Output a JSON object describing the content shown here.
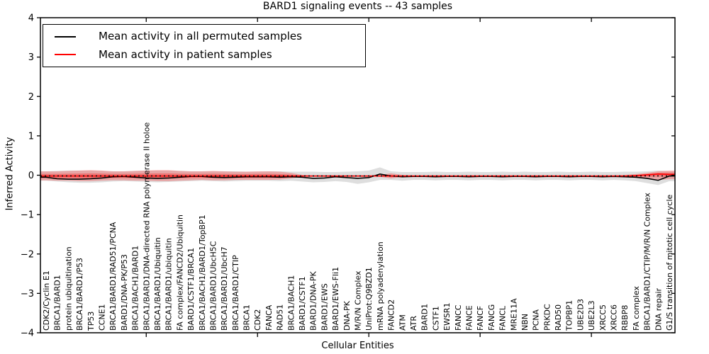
{
  "title": "BARD1 signaling events -- 43 samples",
  "axes": {
    "x_label": "Cellular Entities",
    "y_label": "Inferred Activity",
    "y_tick_labels": [
      "-4",
      "-3",
      "-2",
      "-1",
      "0",
      "1",
      "2",
      "3",
      "4"
    ],
    "y_ticks": [
      -4,
      -3,
      -2,
      -1,
      0,
      1,
      2,
      3,
      4
    ],
    "y_min": -4,
    "y_max": 4
  },
  "legend": {
    "items": [
      {
        "label": "Mean activity in all permuted samples",
        "color": "#000000"
      },
      {
        "label": "Mean activity in patient samples",
        "color": "#ff0000"
      }
    ]
  },
  "chart_data": {
    "type": "line",
    "title": "BARD1 signaling events -- 43 samples",
    "xlabel": "Cellular Entities",
    "ylabel": "Inferred Activity",
    "ylim": [
      -4,
      4
    ],
    "grid": false,
    "legend_position": "upper left",
    "categories": [
      "CDK2/Cyclin E1",
      "BRCA1/BARD1",
      "protein ubiquitination",
      "BRCA1/BARD1/P53",
      "TP53",
      "CCNE1",
      "BRCA1/BARD1/RAD51/PCNA",
      "BARD1/DNA-PK/P53",
      "BRCA1/BACH1/BARD1",
      "BRCA1/BARD1/DNA-directed RNA polymerase II holoe",
      "BRCA1/BARD1/Ubiquitin",
      "BRCA1/BARD1/ubiquitin",
      "FA complex/FANCD2/Ubiquitin",
      "BARD1/CSTF1/BRCA1",
      "BRCA1/BACH1/BARD1/TopBP1",
      "BRCA1/BARD1/UbcH5C",
      "BRCA1/BARD1/UbcH7",
      "BRCA1/BARD1/CTIP",
      "BRCA1",
      "CDK2",
      "FANCA",
      "RAD51",
      "BRCA1/BACH1",
      "BARD1/CSTF1",
      "BARD1/DNA-PK",
      "BARD1/EWS",
      "BARD1/EWS-Fli1",
      "DNA-PK",
      "M/R/N Complex",
      "UniProt:Q9BZD1",
      "mRNA polyadenylation",
      "FANCD2",
      "ATM",
      "ATR",
      "BARD1",
      "CSTF1",
      "EWSR1",
      "FANCC",
      "FANCE",
      "FANCF",
      "FANCG",
      "FANCL",
      "MRE11A",
      "NBN",
      "PCNA",
      "PRKDC",
      "RAD50",
      "TOPBP1",
      "UBE2D3",
      "UBE2L3",
      "XRCC5",
      "XRCC6",
      "RBBP8",
      "FA complex",
      "BRCA1/BARD1/CTIP/M/R/N Complex",
      "DNA repair",
      "G1/S transition of mitotic cell cycle"
    ],
    "series": [
      {
        "name": "Mean activity in all permuted samples",
        "color": "#000000",
        "band_color": "#000000",
        "band_alpha": 0.13,
        "values": [
          -0.05,
          -0.09,
          -0.1,
          -0.1,
          -0.09,
          -0.07,
          -0.04,
          -0.03,
          -0.05,
          -0.07,
          -0.08,
          -0.07,
          -0.05,
          -0.03,
          -0.03,
          -0.05,
          -0.06,
          -0.05,
          -0.04,
          -0.04,
          -0.04,
          -0.05,
          -0.04,
          -0.05,
          -0.08,
          -0.07,
          -0.04,
          -0.06,
          -0.08,
          -0.06,
          0.03,
          -0.02,
          -0.04,
          -0.03,
          -0.03,
          -0.04,
          -0.03,
          -0.03,
          -0.04,
          -0.03,
          -0.03,
          -0.04,
          -0.03,
          -0.03,
          -0.04,
          -0.03,
          -0.03,
          -0.04,
          -0.03,
          -0.03,
          -0.04,
          -0.03,
          -0.04,
          -0.05,
          -0.08,
          -0.13,
          -0.02
        ],
        "band_upper": [
          0.1,
          0.11,
          0.12,
          0.12,
          0.12,
          0.11,
          0.1,
          0.1,
          0.11,
          0.12,
          0.12,
          0.12,
          0.11,
          0.1,
          0.1,
          0.1,
          0.1,
          0.1,
          0.09,
          0.09,
          0.1,
          0.1,
          0.09,
          0.09,
          0.09,
          0.08,
          0.08,
          0.09,
          0.1,
          0.12,
          0.2,
          0.1,
          0.08,
          0.08,
          0.08,
          0.09,
          0.08,
          0.08,
          0.09,
          0.08,
          0.08,
          0.09,
          0.08,
          0.09,
          0.08,
          0.08,
          0.09,
          0.08,
          0.08,
          0.09,
          0.08,
          0.08,
          0.09,
          0.09,
          0.1,
          0.12,
          0.1
        ],
        "band_lower": [
          -0.14,
          -0.16,
          -0.18,
          -0.19,
          -0.19,
          -0.18,
          -0.16,
          -0.15,
          -0.16,
          -0.17,
          -0.18,
          -0.17,
          -0.16,
          -0.15,
          -0.14,
          -0.15,
          -0.16,
          -0.15,
          -0.14,
          -0.14,
          -0.14,
          -0.15,
          -0.14,
          -0.16,
          -0.18,
          -0.17,
          -0.15,
          -0.17,
          -0.22,
          -0.18,
          -0.12,
          -0.12,
          -0.14,
          -0.12,
          -0.12,
          -0.13,
          -0.12,
          -0.12,
          -0.13,
          -0.12,
          -0.12,
          -0.13,
          -0.12,
          -0.12,
          -0.13,
          -0.12,
          -0.12,
          -0.13,
          -0.12,
          -0.12,
          -0.13,
          -0.12,
          -0.13,
          -0.15,
          -0.2,
          -0.25,
          -0.15
        ]
      },
      {
        "name": "Mean activity in patient samples",
        "color": "#ff0000",
        "band_color": "#ff0000",
        "band_alpha": 0.25,
        "values": [
          -0.02,
          -0.02,
          -0.02,
          -0.02,
          -0.02,
          -0.02,
          -0.02,
          -0.02,
          -0.02,
          -0.02,
          -0.02,
          -0.02,
          -0.02,
          -0.02,
          -0.02,
          -0.02,
          -0.02,
          -0.02,
          -0.02,
          -0.02,
          -0.02,
          -0.02,
          -0.02,
          -0.02,
          -0.02,
          -0.02,
          -0.02,
          -0.02,
          -0.02,
          -0.02,
          -0.02,
          -0.02,
          -0.02,
          -0.02,
          -0.02,
          -0.02,
          -0.02,
          -0.02,
          -0.02,
          -0.02,
          -0.02,
          -0.02,
          -0.02,
          -0.02,
          -0.02,
          -0.02,
          -0.02,
          -0.02,
          -0.02,
          -0.02,
          -0.02,
          -0.02,
          -0.02,
          -0.01,
          0.01,
          0.03,
          0.02
        ],
        "band_upper": [
          0.1,
          0.1,
          0.11,
          0.12,
          0.13,
          0.12,
          0.1,
          0.1,
          0.11,
          0.12,
          0.13,
          0.13,
          0.11,
          0.1,
          0.1,
          0.11,
          0.1,
          0.09,
          0.09,
          0.1,
          0.1,
          0.09,
          0.06,
          0.01,
          0.0,
          0.0,
          0.0,
          0.0,
          0.0,
          0.0,
          0.01,
          0.05,
          0.01,
          0.0,
          0.0,
          0.0,
          0.0,
          0.0,
          0.0,
          0.0,
          0.0,
          0.0,
          0.0,
          0.0,
          0.0,
          0.0,
          0.0,
          0.0,
          0.0,
          0.0,
          0.0,
          0.0,
          0.01,
          0.03,
          0.06,
          0.1,
          0.12
        ],
        "band_lower": [
          -0.13,
          -0.14,
          -0.14,
          -0.15,
          -0.15,
          -0.14,
          -0.13,
          -0.13,
          -0.14,
          -0.14,
          -0.15,
          -0.15,
          -0.14,
          -0.13,
          -0.12,
          -0.13,
          -0.13,
          -0.12,
          -0.12,
          -0.12,
          -0.12,
          -0.11,
          -0.08,
          -0.04,
          -0.04,
          -0.04,
          -0.04,
          -0.04,
          -0.04,
          -0.04,
          -0.04,
          -0.08,
          -0.04,
          -0.04,
          -0.04,
          -0.04,
          -0.04,
          -0.04,
          -0.04,
          -0.04,
          -0.04,
          -0.04,
          -0.04,
          -0.04,
          -0.04,
          -0.04,
          -0.04,
          -0.04,
          -0.04,
          -0.04,
          -0.04,
          -0.04,
          -0.05,
          -0.07,
          -0.09,
          -0.12,
          -0.1
        ]
      }
    ],
    "ref_line": {
      "y": 0,
      "style": "dotted",
      "color": "#000000"
    }
  }
}
